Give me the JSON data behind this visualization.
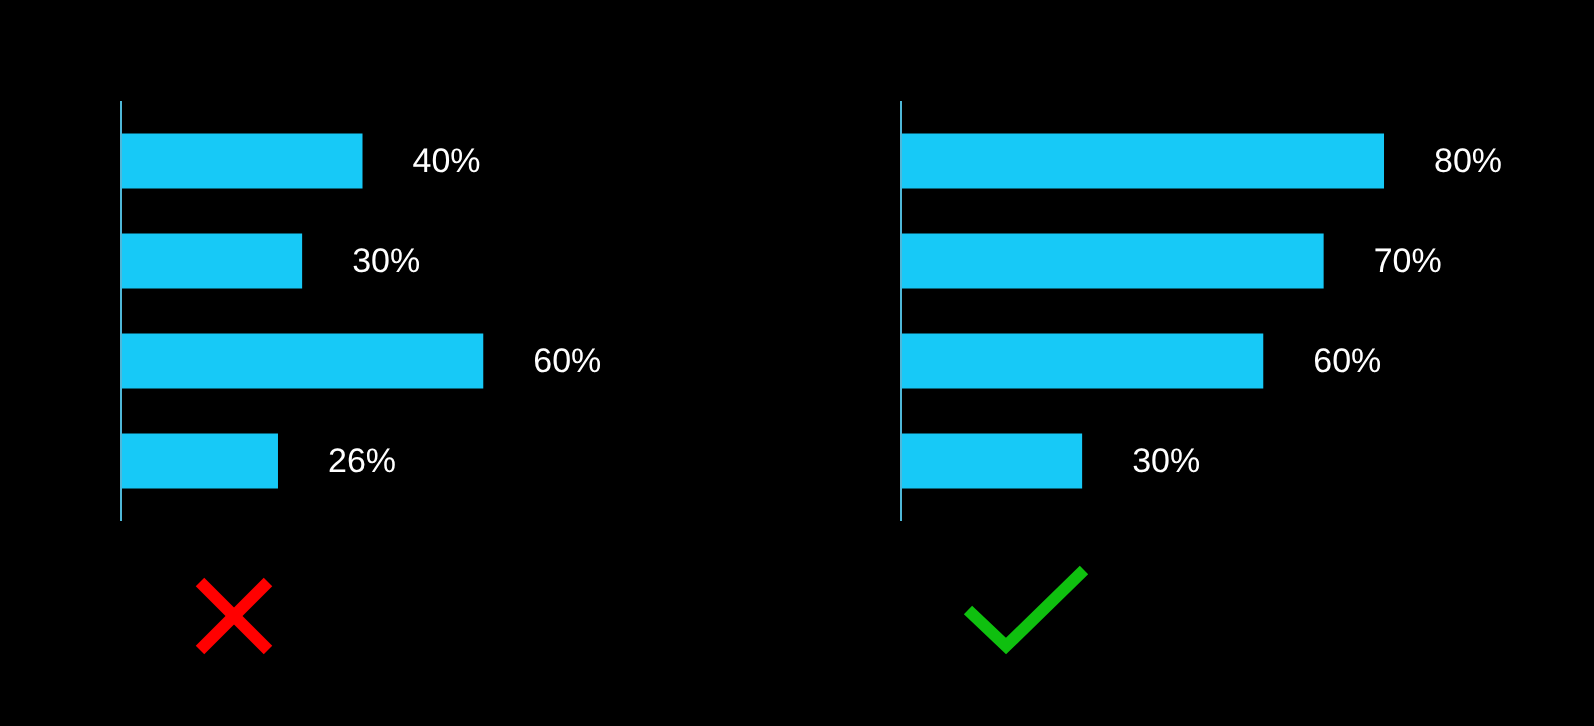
{
  "chart_data": [
    {
      "type": "bar",
      "orientation": "horizontal",
      "categories": [
        null,
        null,
        null,
        null
      ],
      "values": [
        40,
        30,
        60,
        26
      ],
      "value_labels": [
        "40%",
        "30%",
        "60%",
        "26%"
      ],
      "color": "#17c9f7",
      "grid": false
    },
    {
      "type": "bar",
      "orientation": "horizontal",
      "categories": [
        null,
        null,
        null,
        null
      ],
      "values": [
        80,
        70,
        60,
        30
      ],
      "value_labels": [
        "80%",
        "70%",
        "60%",
        "30%"
      ],
      "color": "#17c9f7",
      "grid": false
    }
  ]
}
